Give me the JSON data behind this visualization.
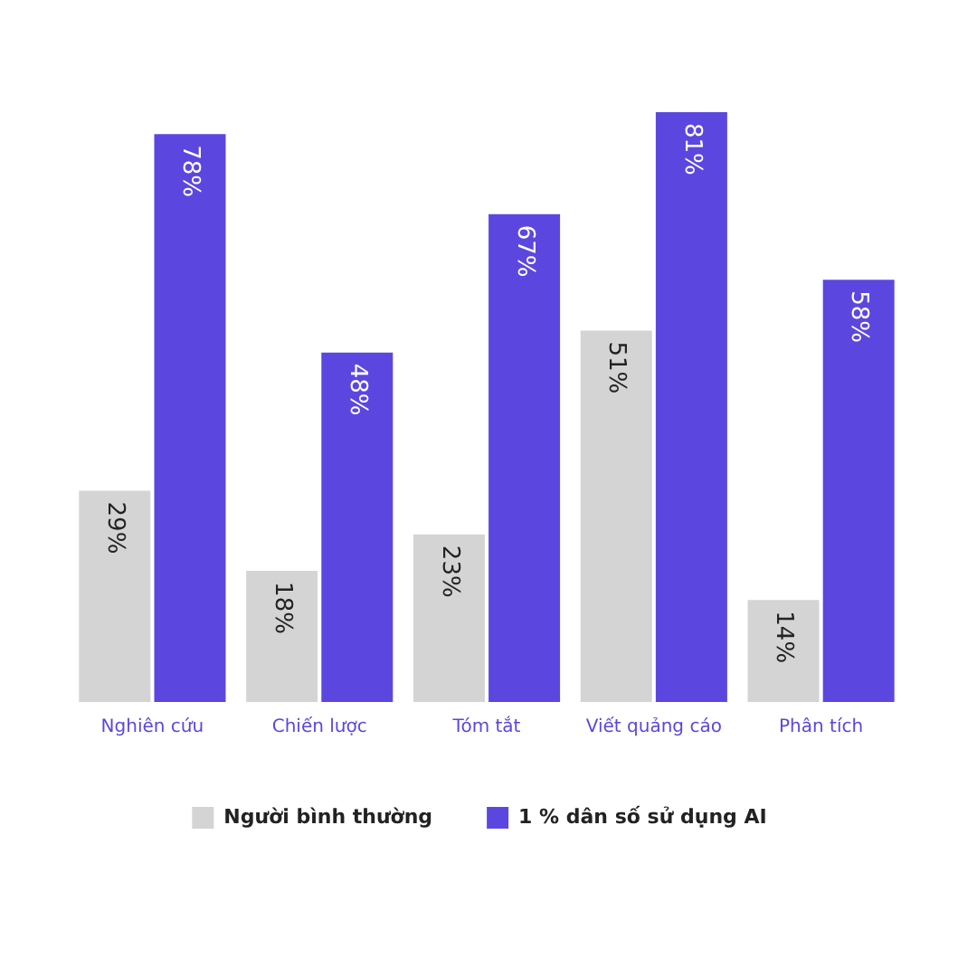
{
  "chart_data": {
    "type": "bar",
    "relative": false,
    "categories": [
      "Nghiên cứu",
      "Chiến lược",
      "Tóm tắt",
      "Viết quảng cáo",
      "Phân tích"
    ],
    "series": [
      {
        "name": "Người bình thường",
        "color": "#d4d4d4",
        "values": [
          29,
          18,
          23,
          51,
          14
        ],
        "value_labels": [
          "29%",
          "18%",
          "23%",
          "51%",
          "14%"
        ]
      },
      {
        "name": "1 % dân số sử dụng AI",
        "color": "#5b47e0",
        "values": [
          78,
          48,
          67,
          81,
          58
        ],
        "value_labels": [
          "78%",
          "48%",
          "67%",
          "81%",
          "58%"
        ]
      }
    ],
    "legend": "bottom",
    "grid": false
  }
}
